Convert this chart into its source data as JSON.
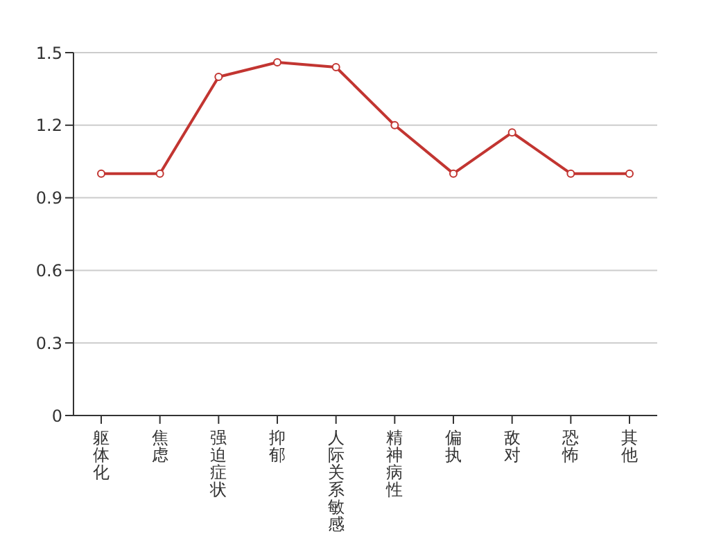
{
  "chart_data": {
    "type": "line",
    "categories": [
      "躯体化",
      "焦虑",
      "强迫症状",
      "抑郁",
      "人际关系敏感",
      "精神病性",
      "偏执",
      "敌对",
      "恐怖",
      "其他"
    ],
    "series": [
      {
        "color": "#c23531",
        "values": [
          1.0,
          1.0,
          1.4,
          1.46,
          1.44,
          1.2,
          1.0,
          1.17,
          1.0,
          1.0
        ]
      }
    ],
    "ylim": [
      0,
      1.5
    ],
    "yticks": [
      0,
      0.3,
      0.6,
      0.9,
      1.2,
      1.5
    ],
    "grid": "y",
    "marker": "circle",
    "line_style": "solid",
    "legend": false
  }
}
